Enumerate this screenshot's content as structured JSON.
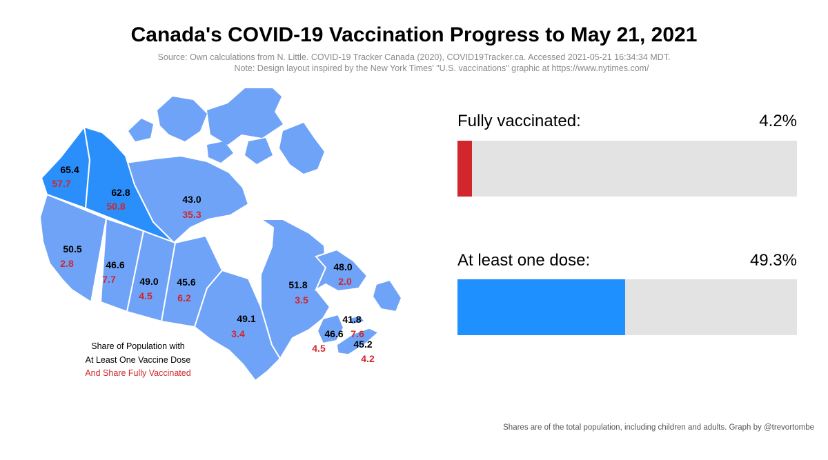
{
  "title": "Canada's COVID-19 Vaccination Progress to May 21, 2021",
  "source_line1": "Source: Own calculations from N. Little. COVID-19 Tracker Canada (2020), COVID19Tracker.ca. Accessed 2021-05-21 16:34:34 MDT.",
  "source_line2": "Note: Design layout inspired by the New York Times' \"U.S. vaccinations\" graphic at https://www.nytimes.com/",
  "legend": {
    "line1": "Share of Population with",
    "line2": "At Least One Vaccine Dose",
    "line3": "And Share Fully Vaccinated"
  },
  "footer": "Shares are of the total population, including children and adults. Graph by @trevortombe",
  "colors": {
    "fully": "#d0262c",
    "one_dose": "#1e90ff",
    "bar_bg": "#e3e3e3",
    "province": "#6fa3f7",
    "territory": "#2a8ffb"
  },
  "chart_data": [
    {
      "type": "bar",
      "categories": [
        "Fully vaccinated:",
        "At least one dose:"
      ],
      "values": [
        4.2,
        49.3
      ],
      "value_labels": [
        "4.2%",
        "49.3%"
      ],
      "ylim": [
        0,
        100
      ]
    },
    {
      "type": "table",
      "regions": [
        {
          "one_dose": "65.4",
          "fully": "57.7"
        },
        {
          "one_dose": "62.8",
          "fully": "50.8"
        },
        {
          "one_dose": "43.0",
          "fully": "35.3"
        },
        {
          "one_dose": "50.5",
          "fully": "2.8"
        },
        {
          "one_dose": "46.6",
          "fully": "7.7"
        },
        {
          "one_dose": "49.0",
          "fully": "4.5"
        },
        {
          "one_dose": "45.6",
          "fully": "6.2"
        },
        {
          "one_dose": "49.1",
          "fully": "3.4"
        },
        {
          "one_dose": "51.8",
          "fully": "3.5"
        },
        {
          "one_dose": "48.0",
          "fully": "2.0"
        },
        {
          "one_dose": "41.8",
          "fully": "7.6"
        },
        {
          "one_dose": "46.6",
          "fully": "4.5"
        },
        {
          "one_dose": "45.2",
          "fully": "4.2"
        }
      ]
    }
  ]
}
